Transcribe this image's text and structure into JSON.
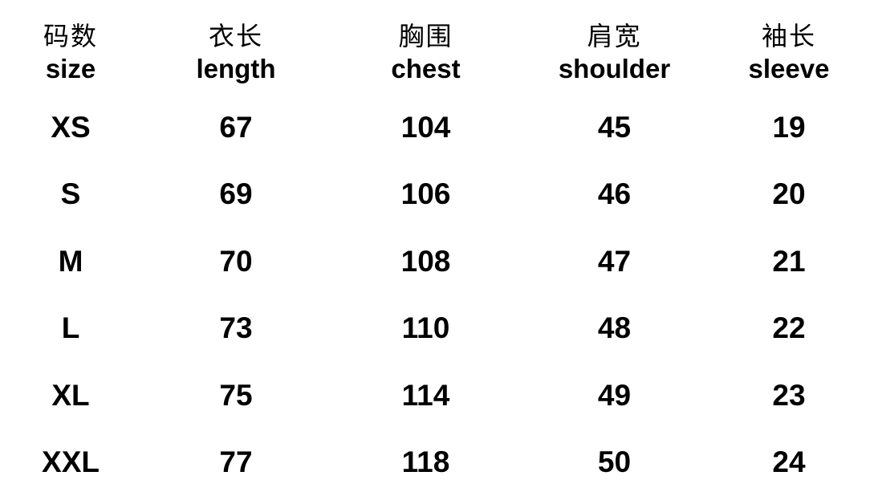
{
  "page": {
    "background_color": "#ffffff",
    "text_color": "#000000"
  },
  "chart_data": {
    "type": "table",
    "columns": [
      {
        "zh": "码数",
        "en": "size"
      },
      {
        "zh": "衣长",
        "en": "length"
      },
      {
        "zh": "胸围",
        "en": "chest"
      },
      {
        "zh": "肩宽",
        "en": "shoulder"
      },
      {
        "zh": "袖长",
        "en": "sleeve"
      }
    ],
    "rows": [
      {
        "size": "XS",
        "length": 67,
        "chest": 104,
        "shoulder": 45,
        "sleeve": 19
      },
      {
        "size": "S",
        "length": 69,
        "chest": 106,
        "shoulder": 46,
        "sleeve": 20
      },
      {
        "size": "M",
        "length": 70,
        "chest": 108,
        "shoulder": 47,
        "sleeve": 21
      },
      {
        "size": "L",
        "length": 73,
        "chest": 110,
        "shoulder": 48,
        "sleeve": 22
      },
      {
        "size": "XL",
        "length": 75,
        "chest": 114,
        "shoulder": 49,
        "sleeve": 23
      },
      {
        "size": "XXL",
        "length": 77,
        "chest": 118,
        "shoulder": 50,
        "sleeve": 24
      }
    ]
  }
}
